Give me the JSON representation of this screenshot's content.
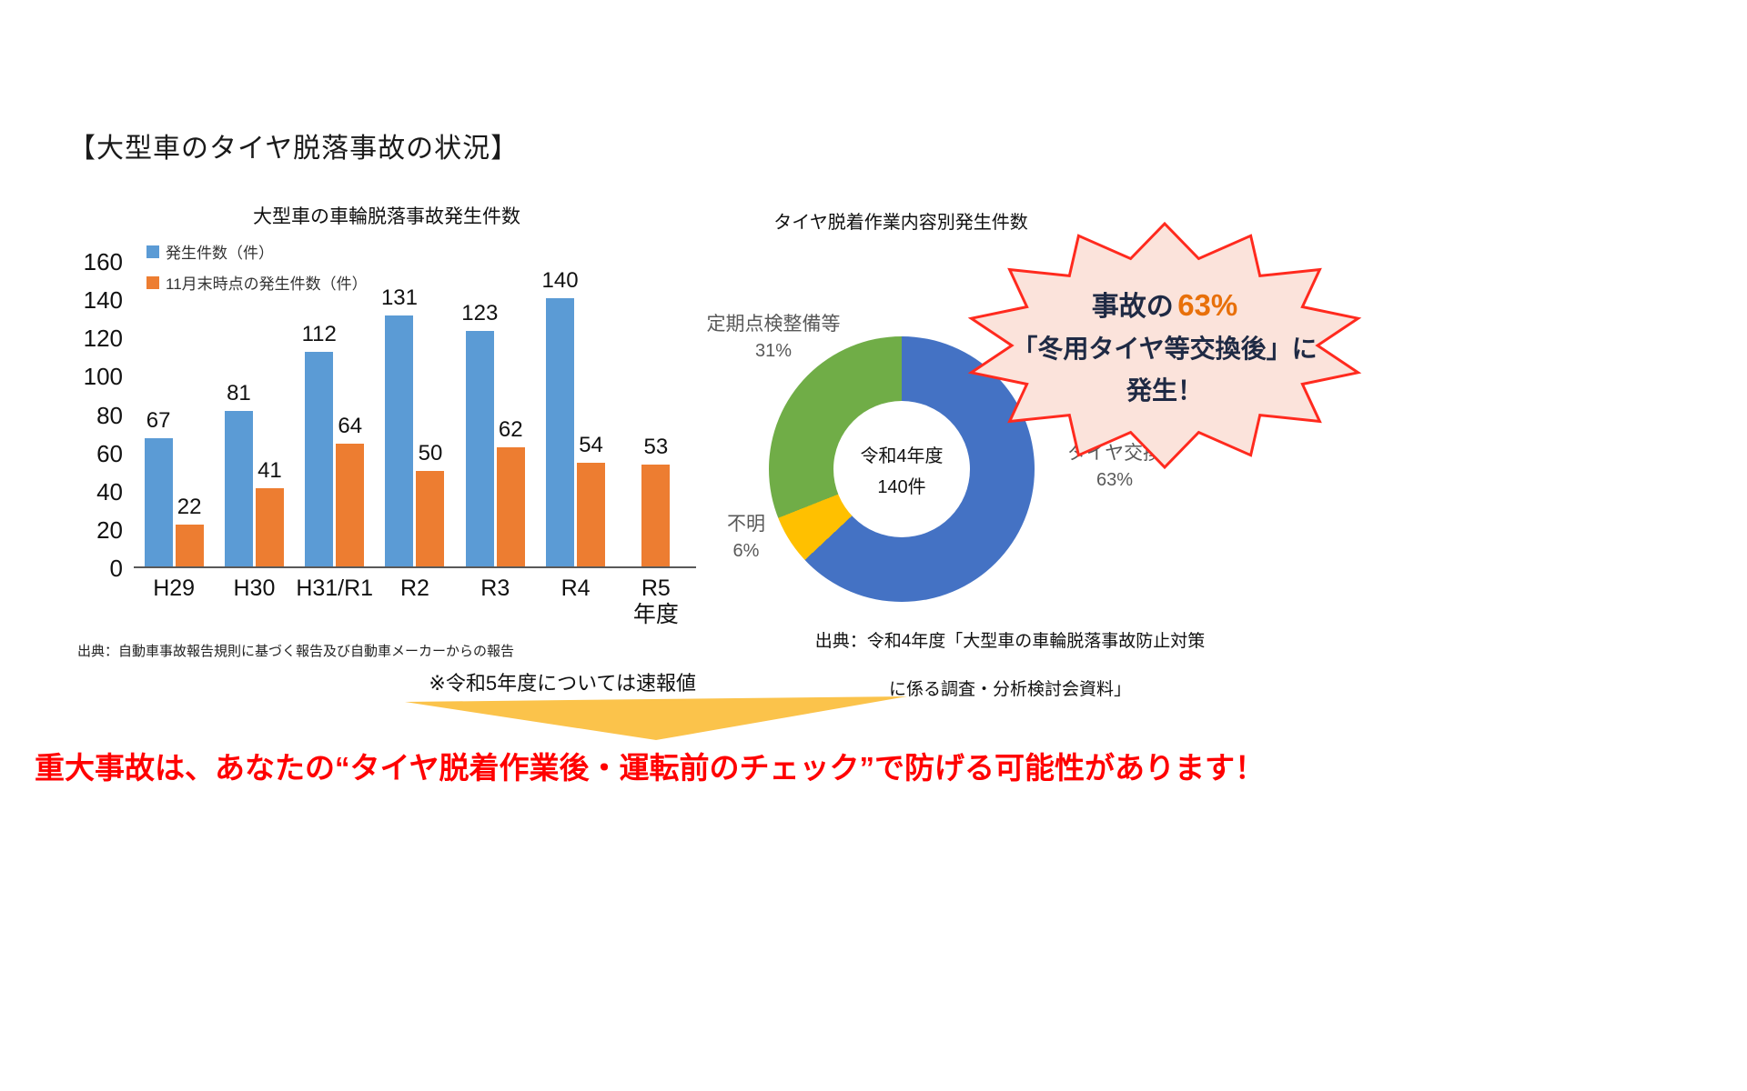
{
  "page": {
    "title": "【大型車のタイヤ脱落事故の状況】",
    "bottom_message": "重大事故は、あなたの“タイヤ脱着作業後・運転前のチェック”で防げる可能性があります！"
  },
  "callout": {
    "prefix": "事故の",
    "highlight": "63%",
    "line2": "「冬用タイヤ等交換後」に",
    "line3": "発生！",
    "highlight_color": "#e8700a",
    "fill_color": "#fbe3db",
    "border_color": "#ff2a1e"
  },
  "chart_data": [
    {
      "type": "bar",
      "title": "大型車の車輪脱落事故発生件数",
      "categories": [
        "H29",
        "H30",
        "H31/R1",
        "R2",
        "R3",
        "R4",
        "R5"
      ],
      "x_unit_label": "年度",
      "ylim": [
        0,
        160
      ],
      "y_ticks": [
        160,
        140,
        120,
        100,
        80,
        60,
        40,
        20,
        0
      ],
      "grid": false,
      "legend_position": "top-left",
      "series": [
        {
          "name": "発生件数（件）",
          "color": "#5B9BD5",
          "values": [
            67,
            81,
            112,
            131,
            123,
            140,
            null
          ]
        },
        {
          "name": "11月末時点の発生件数（件）",
          "color": "#ED7D31",
          "values": [
            22,
            41,
            64,
            50,
            62,
            54,
            53
          ]
        }
      ],
      "source": "出典：自動車事故報告規則に基づく報告及び自動車メーカーからの報告",
      "note": "※令和5年度については速報値"
    },
    {
      "type": "pie",
      "hole": true,
      "title": "タイヤ脱着作業内容別発生件数",
      "center_label": [
        "令和4年度",
        "140件"
      ],
      "segments": [
        {
          "label": "タイヤ交換",
          "pct": 63,
          "pct_label": "63%",
          "color": "#4472C4"
        },
        {
          "label": "不明",
          "pct": 6,
          "pct_label": "6%",
          "color": "#FFC000"
        },
        {
          "label": "定期点検整備等",
          "pct": 31,
          "pct_label": "31%",
          "color": "#70AD47"
        }
      ],
      "source": [
        "出典：令和4年度「大型車の車輪脱落事故防止対策",
        "に係る調査・分析検討会資料」"
      ]
    }
  ]
}
